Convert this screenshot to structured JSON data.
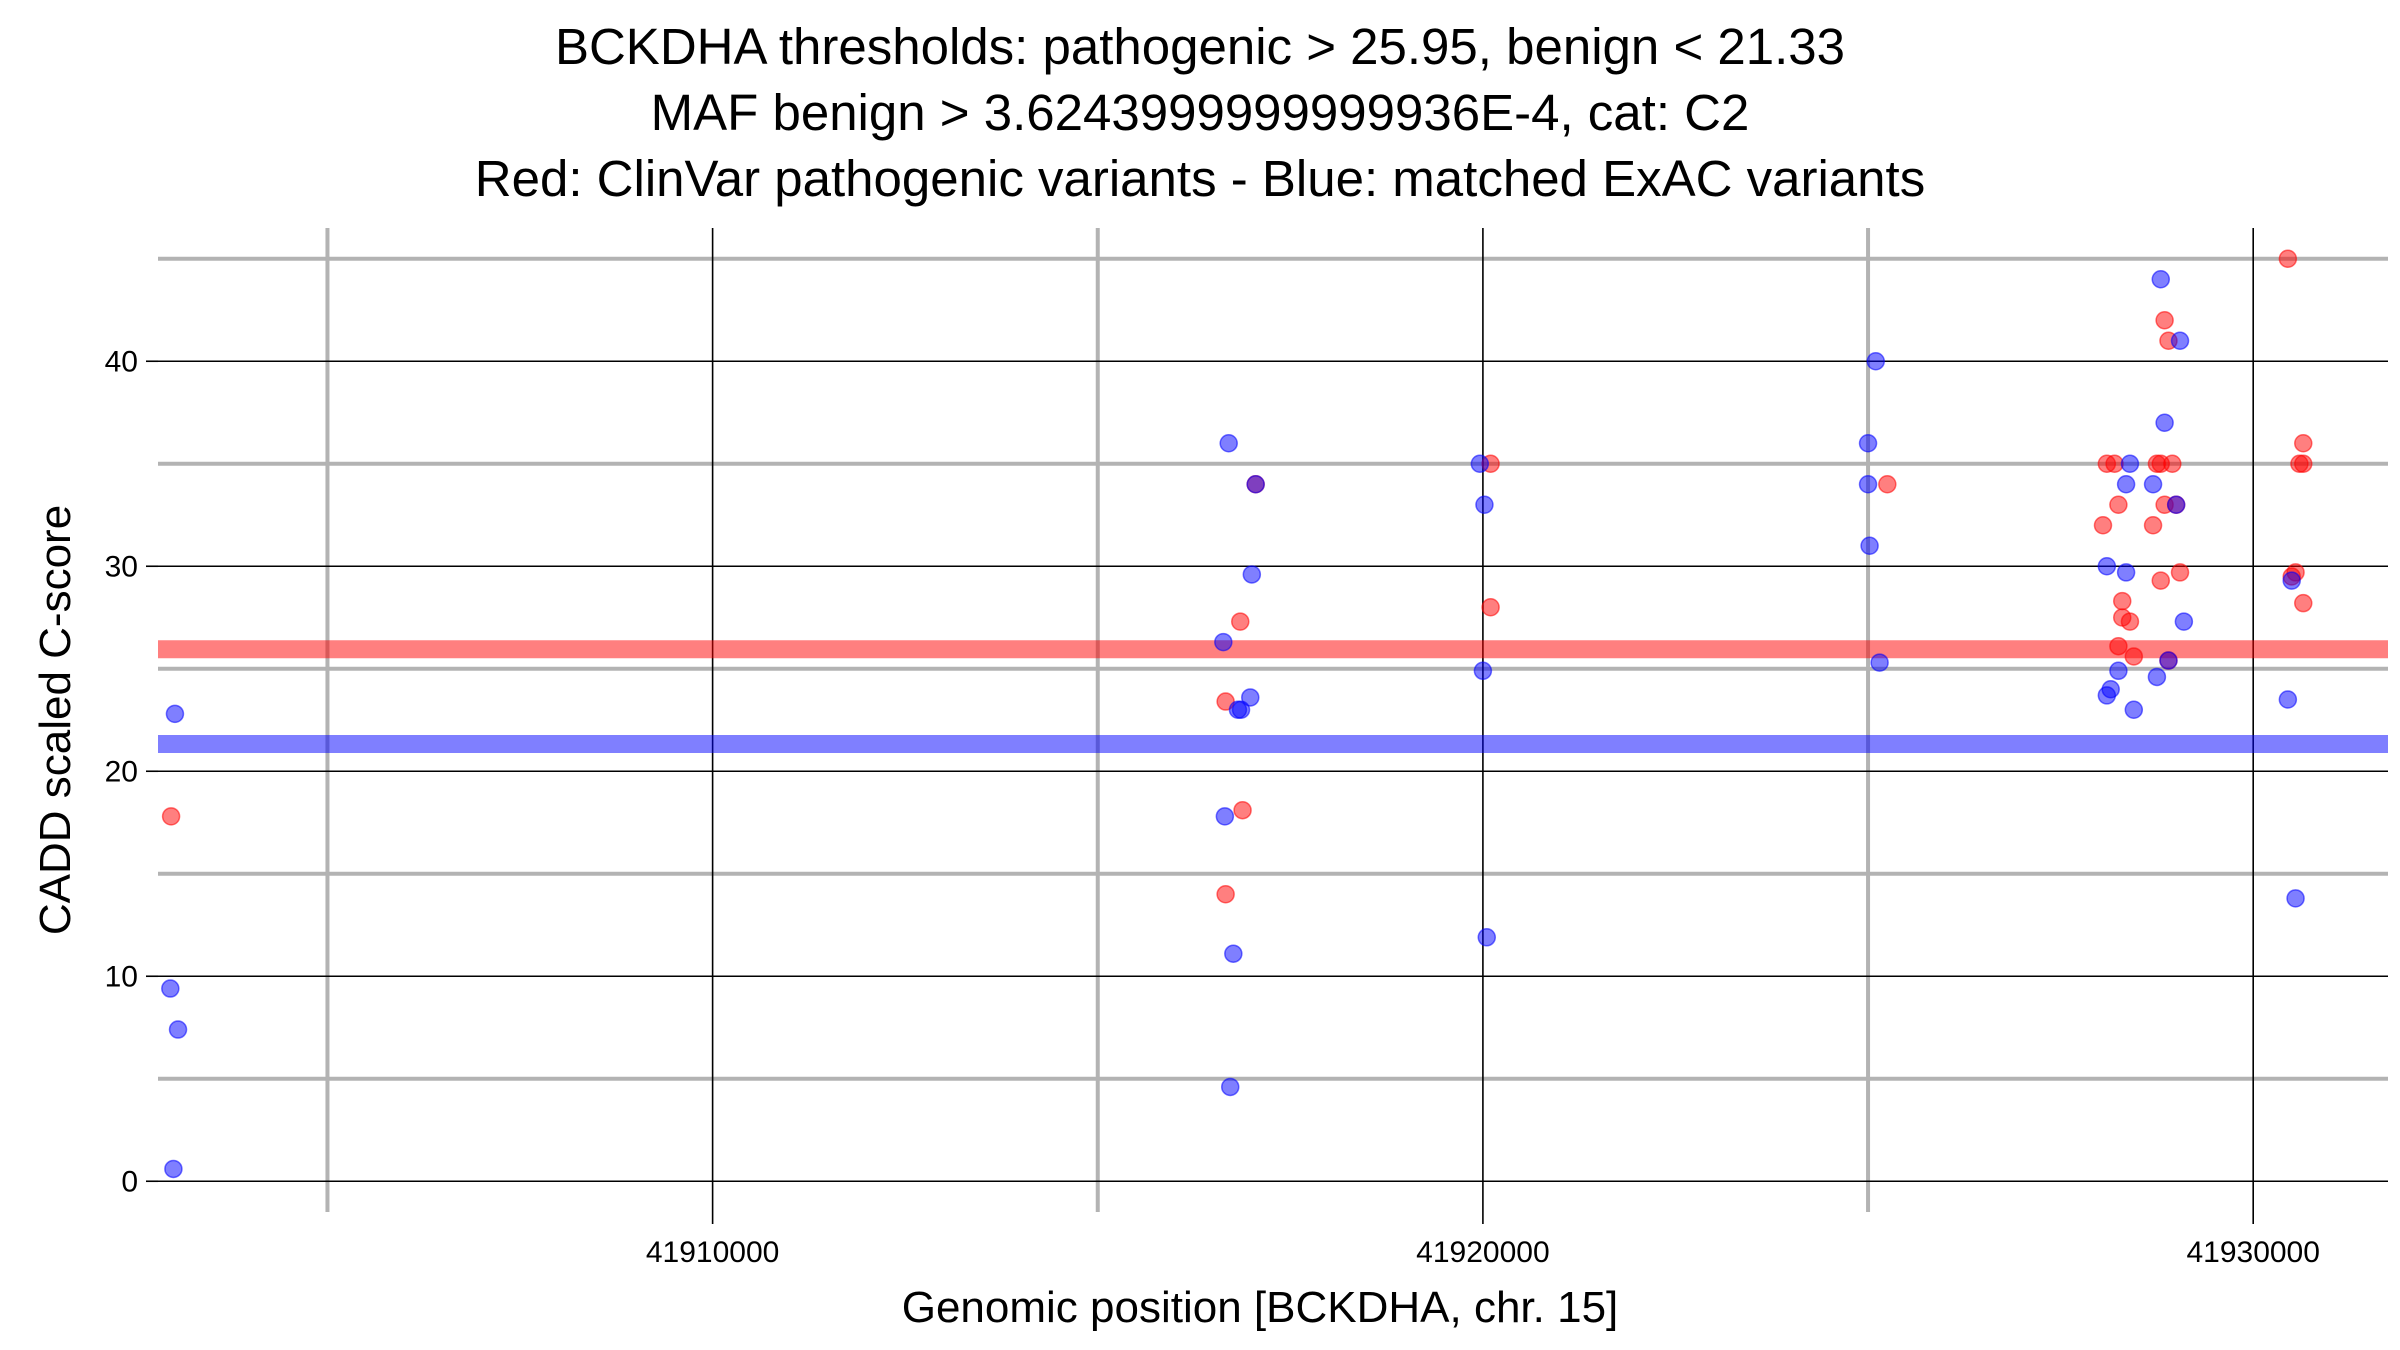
{
  "chart_data": {
    "type": "scatter",
    "title_lines": [
      "BCKDHA thresholds: pathogenic > 25.95, benign < 21.33",
      "MAF benign > 3.6243999999999936E-4, cat: C2",
      "Red: ClinVar pathogenic variants - Blue: matched ExAC variants"
    ],
    "xlabel": "Genomic position [BCKDHA, chr. 15]",
    "ylabel": "CADD scaled C-score",
    "xlim": [
      41902800,
      41931750
    ],
    "ylim": [
      -1.5,
      46.5
    ],
    "x_ticks": [
      41910000,
      41920000,
      41930000
    ],
    "x_tick_labels": [
      "41910000",
      "41920000",
      "41930000"
    ],
    "x_minor_ticks": [
      41905000,
      41915000,
      41925000
    ],
    "y_ticks": [
      0,
      10,
      20,
      30,
      40
    ],
    "y_tick_labels": [
      "0",
      "10",
      "20",
      "30",
      "40"
    ],
    "y_minor_ticks": [
      5,
      15,
      25,
      35,
      45
    ],
    "grid": true,
    "colors": {
      "pathogenic": "#ff0000",
      "benign": "#0000ff",
      "major_grid": "#000000",
      "minor_grid": "#b3b3b3"
    },
    "thresholds": [
      {
        "value": 25.95,
        "color": "#ff0000"
      },
      {
        "value": 21.33,
        "color": "#0000ff"
      }
    ],
    "series": [
      {
        "key": "pathogenic",
        "color": "#ff0000",
        "points": [
          [
            41902970,
            17.8
          ],
          [
            41916660,
            14.0
          ],
          [
            41916660,
            23.4
          ],
          [
            41916850,
            27.3
          ],
          [
            41916880,
            18.1
          ],
          [
            41917050,
            34.0
          ],
          [
            41920100,
            35.0
          ],
          [
            41920100,
            28.0
          ],
          [
            41925250,
            34.0
          ],
          [
            41928050,
            32.0
          ],
          [
            41928100,
            35.0
          ],
          [
            41928200,
            35.0
          ],
          [
            41928250,
            33.0
          ],
          [
            41928300,
            28.3
          ],
          [
            41928300,
            27.5
          ],
          [
            41928400,
            27.3
          ],
          [
            41928450,
            25.6
          ],
          [
            41928250,
            26.1
          ],
          [
            41928700,
            32.0
          ],
          [
            41928750,
            35.0
          ],
          [
            41928800,
            35.0
          ],
          [
            41928850,
            42.0
          ],
          [
            41928900,
            41.0
          ],
          [
            41928850,
            33.0
          ],
          [
            41928800,
            29.3
          ],
          [
            41928900,
            25.4
          ],
          [
            41928950,
            35.0
          ],
          [
            41929050,
            29.7
          ],
          [
            41929000,
            33.0
          ],
          [
            41930450,
            45.0
          ],
          [
            41930550,
            29.7
          ],
          [
            41930600,
            35.0
          ],
          [
            41930650,
            35.0
          ],
          [
            41930650,
            36.0
          ],
          [
            41930650,
            28.2
          ],
          [
            41930500,
            29.5
          ]
        ]
      },
      {
        "key": "benign",
        "color": "#0000ff",
        "points": [
          [
            41903020,
            22.8
          ],
          [
            41902960,
            9.4
          ],
          [
            41903060,
            7.4
          ],
          [
            41903000,
            0.6
          ],
          [
            41916630,
            26.3
          ],
          [
            41916650,
            17.8
          ],
          [
            41916700,
            36.0
          ],
          [
            41916720,
            4.6
          ],
          [
            41916760,
            11.1
          ],
          [
            41916820,
            23.0
          ],
          [
            41916860,
            23.0
          ],
          [
            41916980,
            23.6
          ],
          [
            41917000,
            29.6
          ],
          [
            41917050,
            34.0
          ],
          [
            41919960,
            35.0
          ],
          [
            41920020,
            33.0
          ],
          [
            41920000,
            24.9
          ],
          [
            41920050,
            11.9
          ],
          [
            41925000,
            36.0
          ],
          [
            41925000,
            34.0
          ],
          [
            41925020,
            31.0
          ],
          [
            41925100,
            40.0
          ],
          [
            41925150,
            25.3
          ],
          [
            41928100,
            30.0
          ],
          [
            41928100,
            23.7
          ],
          [
            41928150,
            24.0
          ],
          [
            41928250,
            24.9
          ],
          [
            41928350,
            29.7
          ],
          [
            41928350,
            34.0
          ],
          [
            41928400,
            35.0
          ],
          [
            41928450,
            23.0
          ],
          [
            41928700,
            34.0
          ],
          [
            41928750,
            24.6
          ],
          [
            41928800,
            44.0
          ],
          [
            41928850,
            37.0
          ],
          [
            41928900,
            25.4
          ],
          [
            41929000,
            33.0
          ],
          [
            41929050,
            41.0
          ],
          [
            41929100,
            27.3
          ],
          [
            41930450,
            23.5
          ],
          [
            41930500,
            29.3
          ],
          [
            41930550,
            13.8
          ]
        ]
      }
    ]
  }
}
